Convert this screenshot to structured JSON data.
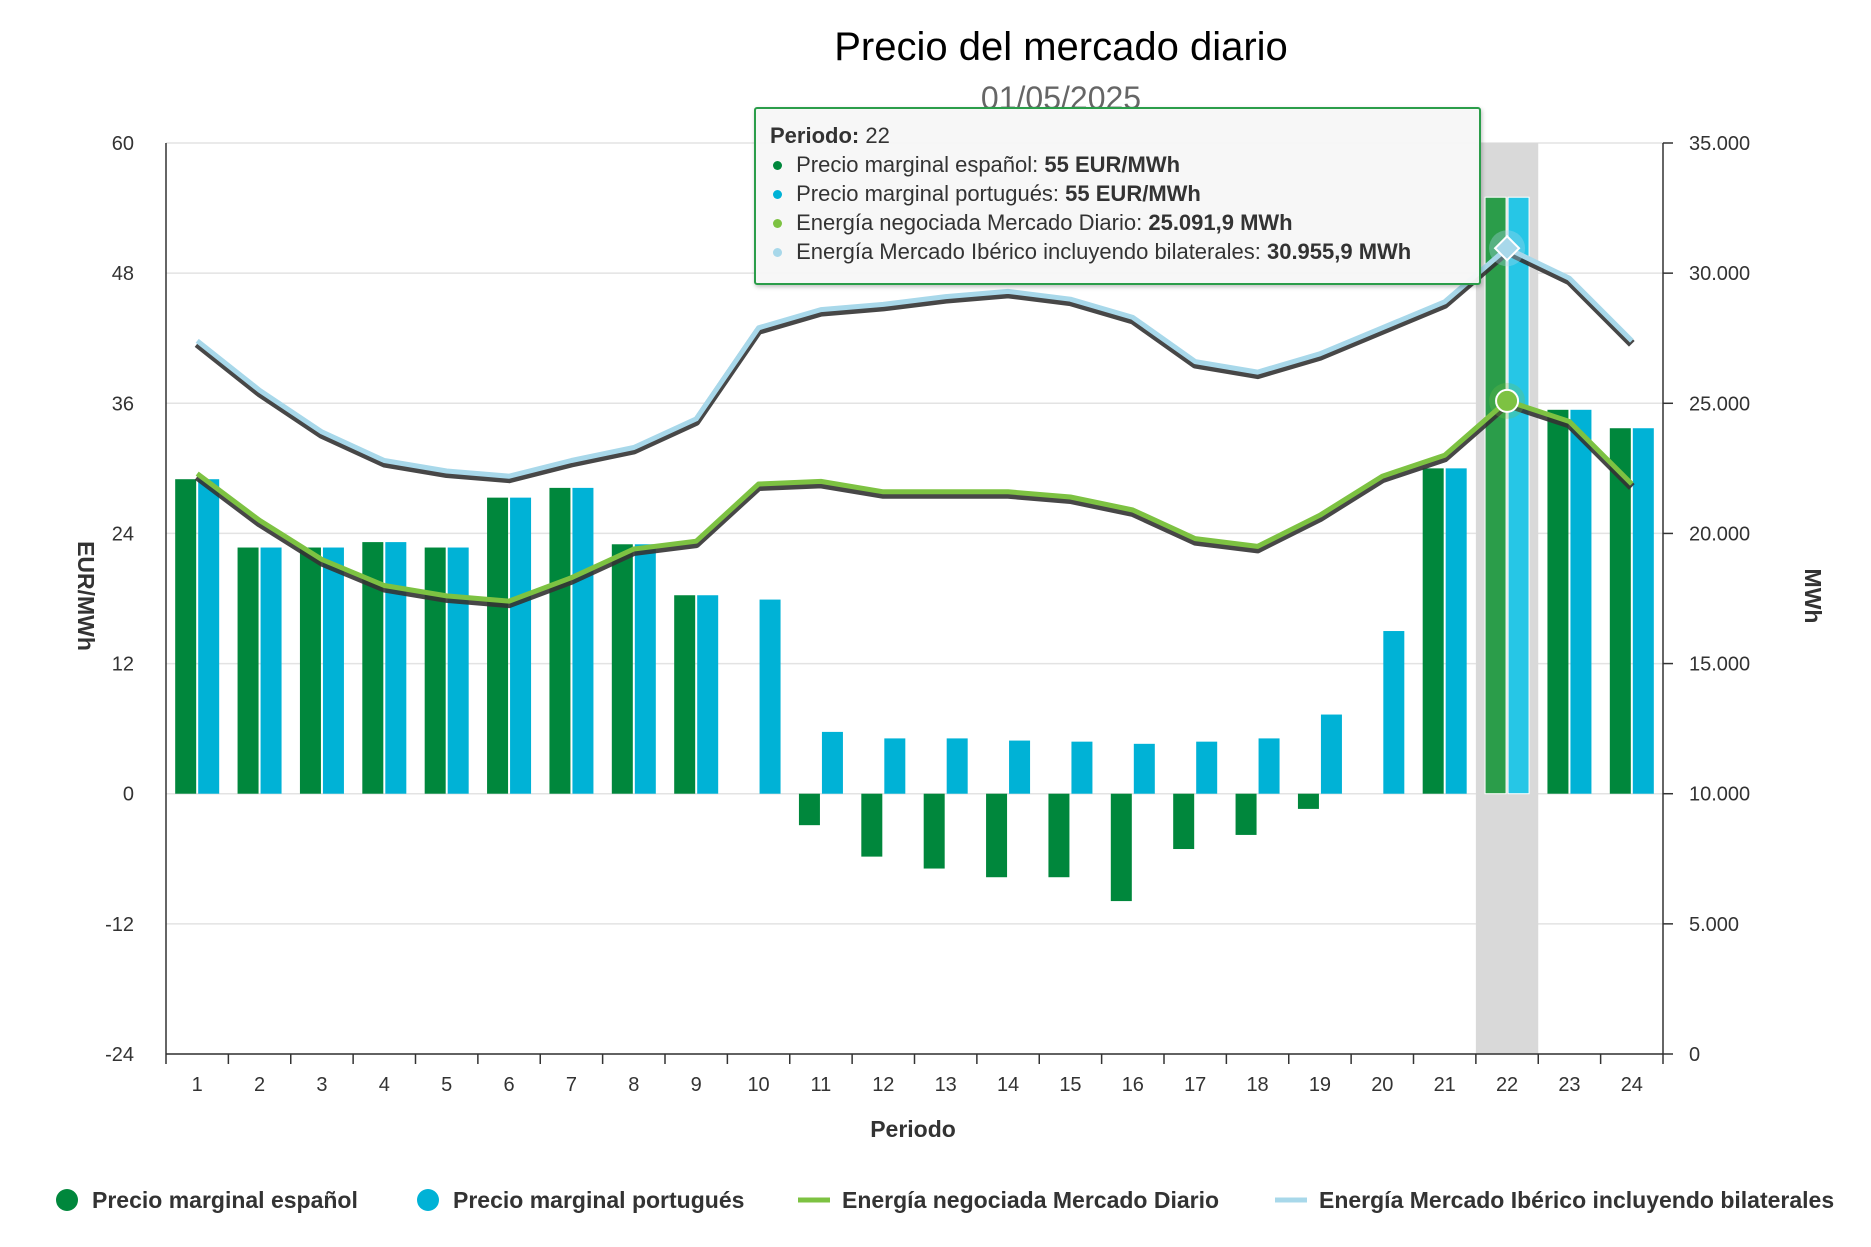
{
  "chart_data": {
    "type": "bar",
    "title": "Precio del mercado diario",
    "subtitle": "01/05/2025",
    "xlabel": "Periodo",
    "ylabel_left": "EUR/MWh",
    "ylabel_right": "MWh",
    "categories": [
      "1",
      "2",
      "3",
      "4",
      "5",
      "6",
      "7",
      "8",
      "9",
      "10",
      "11",
      "12",
      "13",
      "14",
      "15",
      "16",
      "17",
      "18",
      "19",
      "20",
      "21",
      "22",
      "23",
      "24"
    ],
    "ylim_left": [
      -24,
      60
    ],
    "ylim_right": [
      0,
      35000
    ],
    "yticks_left": [
      "60",
      "48",
      "36",
      "24",
      "12",
      "0",
      "-12",
      "-24"
    ],
    "yticks_right": [
      "35.000",
      "30.000",
      "25.000",
      "20.000",
      "15.000",
      "10.000",
      "5.000",
      "0"
    ],
    "grid": true,
    "highlight_category": "22",
    "series": [
      {
        "name": "Precio marginal español",
        "type": "bar",
        "axis": "left",
        "color": "#00873c",
        "values": [
          29,
          22.7,
          22.7,
          23.2,
          22.7,
          27.3,
          28.2,
          23,
          18.3,
          0,
          -2.9,
          -5.8,
          -6.9,
          -7.7,
          -7.7,
          -9.9,
          -5.1,
          -3.8,
          -1.4,
          0,
          30,
          55,
          35.4,
          33.7
        ]
      },
      {
        "name": "Precio marginal portugués",
        "type": "bar",
        "axis": "left",
        "color": "#00b2d6",
        "values": [
          29,
          22.7,
          22.7,
          23.2,
          22.7,
          27.3,
          28.2,
          23,
          18.3,
          17.9,
          5.7,
          5.1,
          5.1,
          4.9,
          4.8,
          4.6,
          4.8,
          5.1,
          7.3,
          15,
          30,
          55,
          35.4,
          33.7
        ]
      },
      {
        "name": "Energía negociada Mercado Diario",
        "type": "line",
        "axis": "right",
        "color": "#7dc242",
        "values": [
          22300,
          20500,
          19000,
          18000,
          17600,
          17400,
          18300,
          19400,
          19700,
          21900,
          22000,
          21600,
          21600,
          21600,
          21400,
          20900,
          19800,
          19500,
          20700,
          22200,
          23000,
          25091.9,
          24300,
          21900
        ]
      },
      {
        "name": "Energía Mercado Ibérico incluyendo bilaterales",
        "type": "line",
        "axis": "right",
        "color": "#a8d8ea",
        "values": [
          27400,
          25500,
          23900,
          22800,
          22400,
          22200,
          22800,
          23300,
          24400,
          27900,
          28600,
          28800,
          29100,
          29300,
          29000,
          28300,
          26600,
          26200,
          26900,
          27900,
          28900,
          30955.9,
          29800,
          27400
        ]
      }
    ]
  },
  "tooltip": {
    "period_label": "Periodo:",
    "period_value": "22",
    "rows": [
      {
        "label": "Precio marginal español:",
        "value": "55 EUR/MWh",
        "color": "#00873c"
      },
      {
        "label": "Precio marginal portugués:",
        "value": "55 EUR/MWh",
        "color": "#00b2d6"
      },
      {
        "label": "Energía negociada Mercado Diario:",
        "value": "25.091,9 MWh",
        "color": "#7dc242"
      },
      {
        "label": "Energía Mercado Ibérico incluyendo bilaterales:",
        "value": "30.955,9 MWh",
        "color": "#a8d8ea"
      }
    ]
  }
}
